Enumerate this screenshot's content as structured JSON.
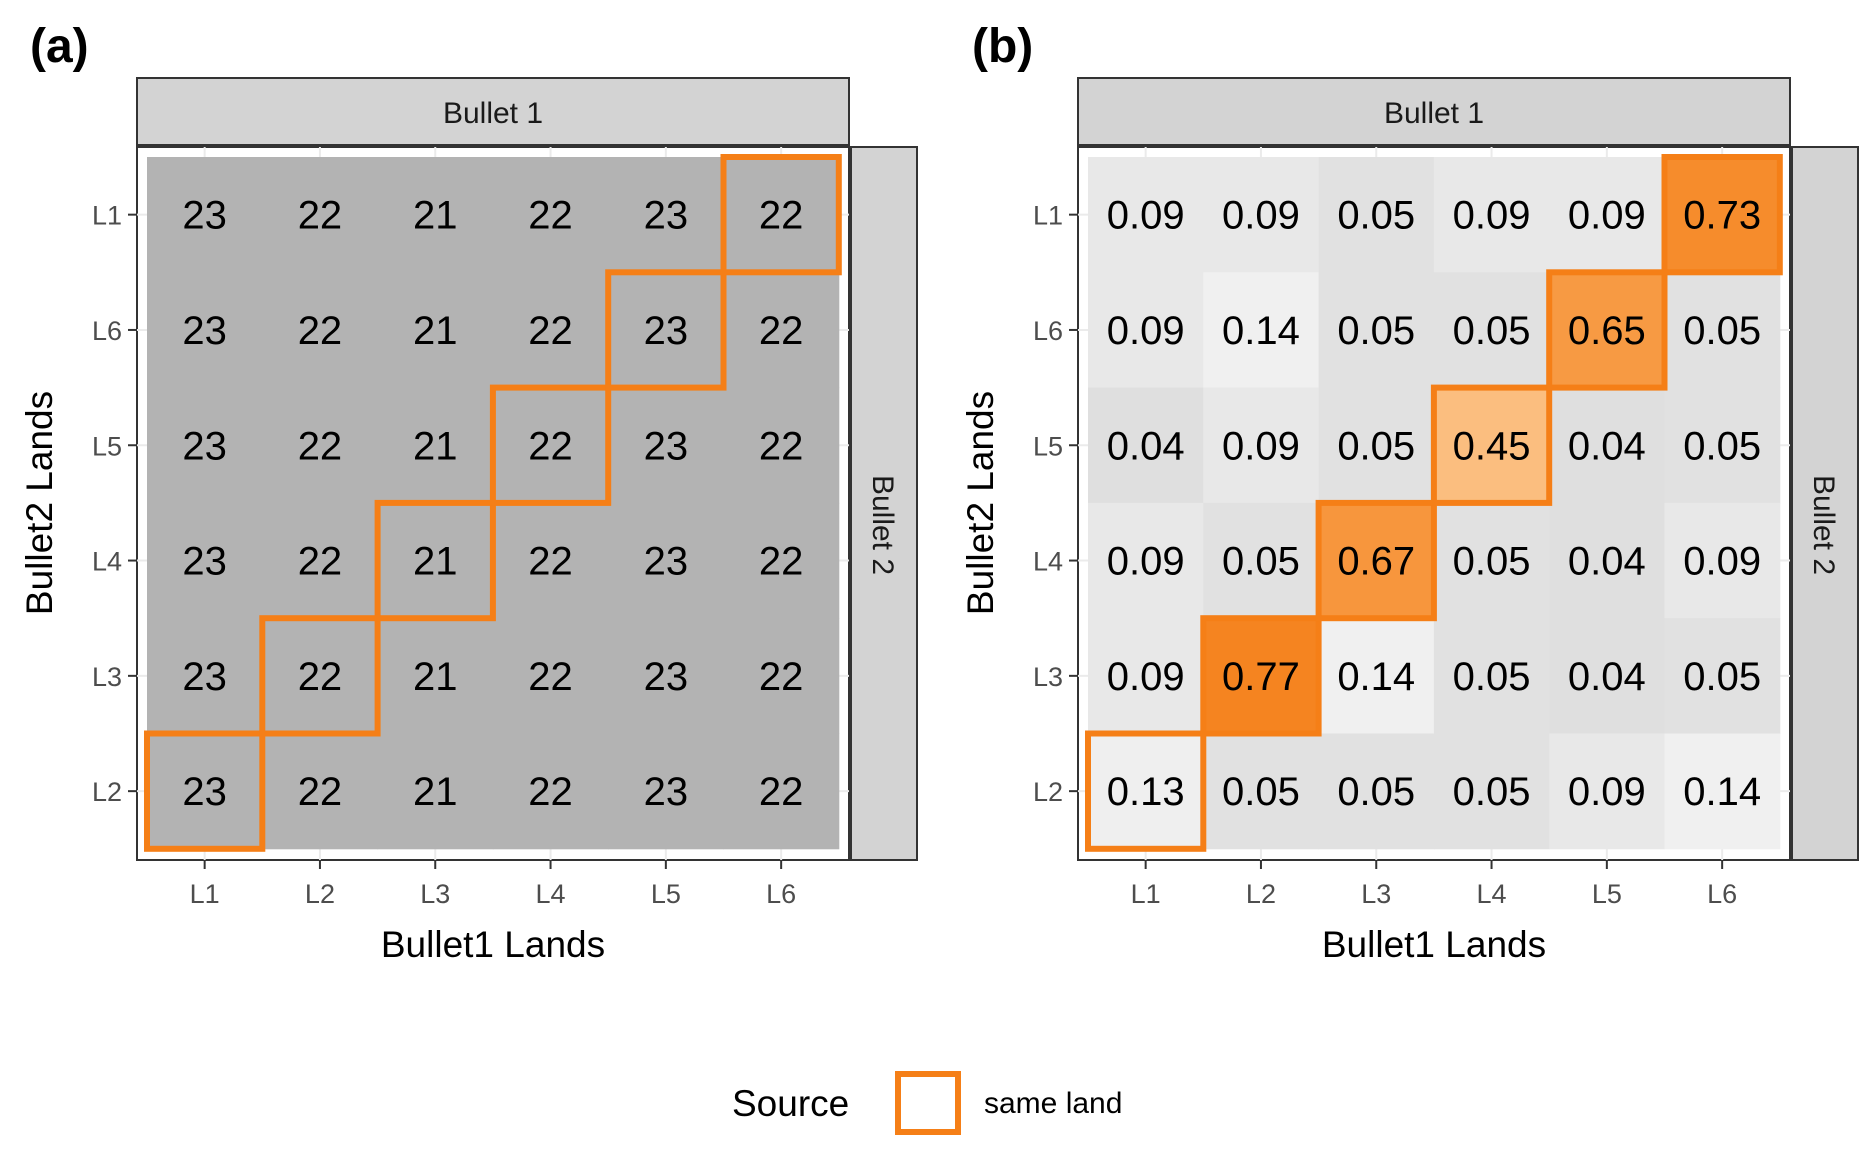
{
  "chart_data": [
    {
      "type": "heatmap",
      "panel_label": "(a)",
      "strip_top": "Bullet 1",
      "strip_right": "Bullet 2",
      "xlabel": "Bullet1 Lands",
      "ylabel": "Bullet2 Lands",
      "x_categories": [
        "L1",
        "L2",
        "L3",
        "L4",
        "L5",
        "L6"
      ],
      "y_categories_top_to_bottom": [
        "L1",
        "L6",
        "L5",
        "L4",
        "L3",
        "L2"
      ],
      "values": [
        [
          "23",
          "22",
          "21",
          "22",
          "23",
          "22"
        ],
        [
          "23",
          "22",
          "21",
          "22",
          "23",
          "22"
        ],
        [
          "23",
          "22",
          "21",
          "22",
          "23",
          "22"
        ],
        [
          "23",
          "22",
          "21",
          "22",
          "23",
          "22"
        ],
        [
          "23",
          "22",
          "21",
          "22",
          "23",
          "22"
        ],
        [
          "23",
          "22",
          "21",
          "22",
          "23",
          "22"
        ]
      ],
      "same_land_pairs": [
        [
          "L1",
          "L2"
        ],
        [
          "L2",
          "L3"
        ],
        [
          "L3",
          "L4"
        ],
        [
          "L4",
          "L5"
        ],
        [
          "L5",
          "L6"
        ],
        [
          "L6",
          "L1"
        ]
      ],
      "grid": true
    },
    {
      "type": "heatmap",
      "panel_label": "(b)",
      "strip_top": "Bullet 1",
      "strip_right": "Bullet 2",
      "xlabel": "Bullet1 Lands",
      "ylabel": "Bullet2 Lands",
      "x_categories": [
        "L1",
        "L2",
        "L3",
        "L4",
        "L5",
        "L6"
      ],
      "y_categories_top_to_bottom": [
        "L1",
        "L6",
        "L5",
        "L4",
        "L3",
        "L2"
      ],
      "values": [
        [
          "0.09",
          "0.09",
          "0.05",
          "0.09",
          "0.09",
          "0.73"
        ],
        [
          "0.09",
          "0.14",
          "0.05",
          "0.05",
          "0.65",
          "0.05"
        ],
        [
          "0.04",
          "0.09",
          "0.05",
          "0.45",
          "0.04",
          "0.05"
        ],
        [
          "0.09",
          "0.05",
          "0.67",
          "0.05",
          "0.04",
          "0.09"
        ],
        [
          "0.09",
          "0.77",
          "0.14",
          "0.05",
          "0.04",
          "0.05"
        ],
        [
          "0.13",
          "0.05",
          "0.05",
          "0.05",
          "0.09",
          "0.14"
        ]
      ],
      "same_land_pairs": [
        [
          "L1",
          "L2"
        ],
        [
          "L2",
          "L3"
        ],
        [
          "L3",
          "L4"
        ],
        [
          "L4",
          "L5"
        ],
        [
          "L5",
          "L6"
        ],
        [
          "L6",
          "L1"
        ]
      ],
      "grid": true
    }
  ],
  "legend": {
    "title": "Source",
    "items": [
      {
        "label": "same land",
        "color": "#f57f17"
      }
    ],
    "placement": "bottom"
  },
  "colors": {
    "highlight": "#f57f17",
    "panel_a_fill": "#b3b3b3",
    "strip_fill": "#d3d3d3",
    "grid": "#ebebeb"
  }
}
